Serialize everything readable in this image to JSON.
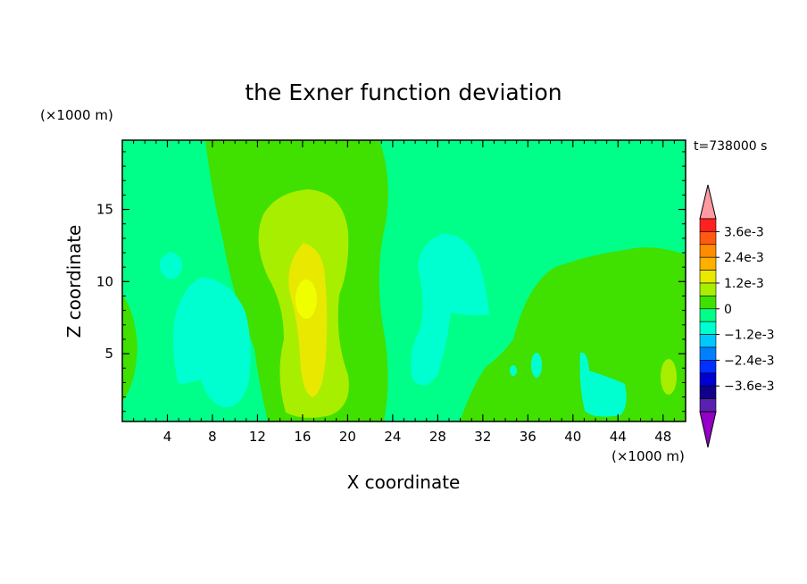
{
  "chart_data": {
    "type": "heatmap",
    "title": "the Exner function deviation",
    "xlabel": "X coordinate",
    "ylabel": "Z coordinate",
    "x_unit": "(×1000 m)",
    "y_unit": "(×1000 m)",
    "time_label": "t=738000 s",
    "xlim": [
      0,
      50
    ],
    "ylim": [
      0.3,
      19.8
    ],
    "x_ticks": [
      "4",
      "8",
      "12",
      "16",
      "20",
      "24",
      "28",
      "32",
      "36",
      "40",
      "44",
      "48"
    ],
    "y_ticks": [
      "5",
      "10",
      "15"
    ],
    "colorbar": {
      "labels": [
        "3.6e-3",
        "2.4e-3",
        "1.2e-3",
        "0",
        "−1.2e-3",
        "−2.4e-3",
        "−3.6e-3"
      ],
      "levels_top_to_bottom": [
        0.0036,
        0.003,
        0.0024,
        0.0018,
        0.0012,
        0.0006,
        0,
        -0.0006,
        -0.0012,
        -0.0018,
        -0.0024,
        -0.003,
        -0.0036
      ],
      "colors_top_to_bottom": [
        "#ff9aa2",
        "#ff2020",
        "#ff5a10",
        "#ff8c00",
        "#ffb000",
        "#e8e800",
        "#a8ee00",
        "#40e000",
        "#00ff88",
        "#00ffd0",
        "#00c8ff",
        "#0080ff",
        "#0030ff",
        "#0000d0",
        "#10008a",
        "#5a20b0",
        "#9400c8"
      ]
    },
    "regions": {
      "background": "#00ff88",
      "positive_low": "#40e000",
      "positive_mid": "#a8ee00",
      "positive_high": "#e8e800",
      "negative_low": "#00ffd0"
    }
  }
}
